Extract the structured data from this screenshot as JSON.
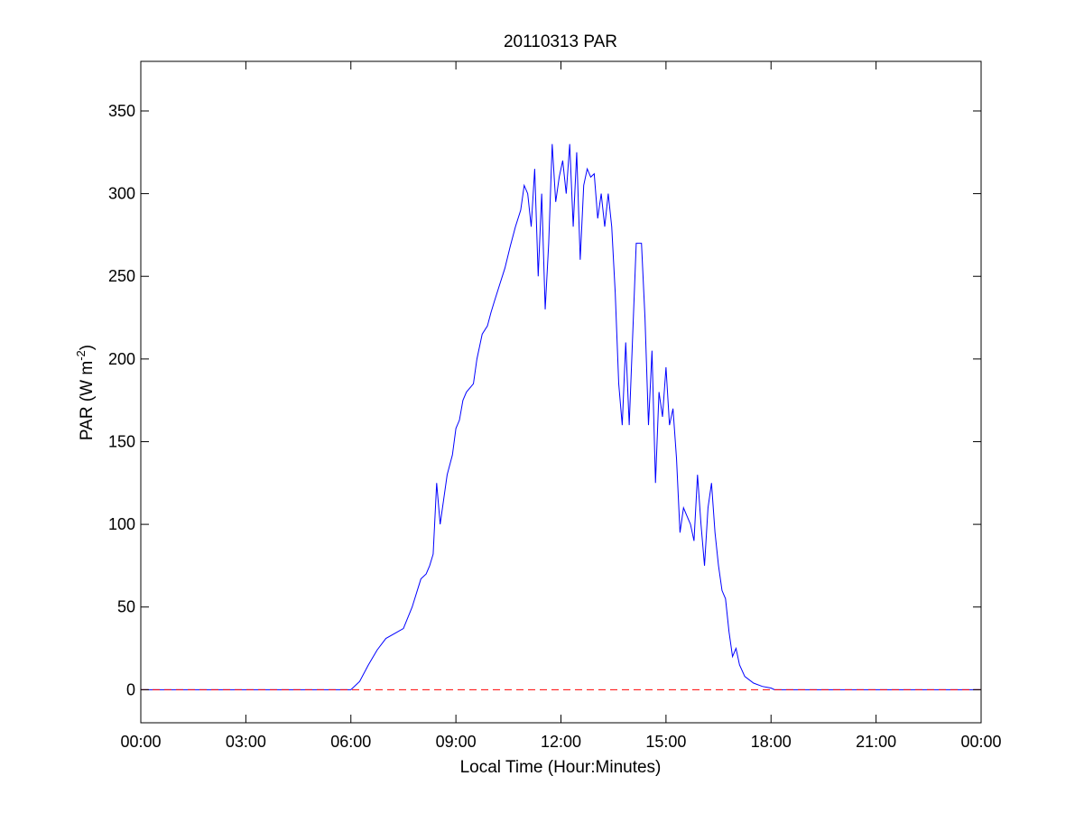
{
  "chart_data": {
    "type": "line",
    "title": "20110313 PAR",
    "xlabel": "Local Time (Hour:Minutes)",
    "ylabel": {
      "prefix": "PAR (W m",
      "superscript": "-2",
      "suffix": ")"
    },
    "xlim": [
      "00:00",
      "24:00"
    ],
    "xticks": [
      "00:00",
      "03:00",
      "06:00",
      "09:00",
      "12:00",
      "15:00",
      "18:00",
      "21:00",
      "00:00"
    ],
    "ylim": [
      -20,
      380
    ],
    "yticks": [
      "0",
      "50",
      "100",
      "150",
      "200",
      "250",
      "300",
      "350"
    ],
    "grid": false,
    "legend": "none",
    "series": [
      {
        "color": "#0000ff",
        "style": "solid",
        "x_unit": "hours",
        "x": [
          0,
          6.0,
          6.25,
          6.5,
          6.75,
          7.0,
          7.25,
          7.5,
          7.75,
          8.0,
          8.15,
          8.25,
          8.35,
          8.45,
          8.55,
          8.65,
          8.75,
          8.9,
          9.0,
          9.1,
          9.2,
          9.3,
          9.5,
          9.6,
          9.75,
          9.9,
          10.0,
          10.1,
          10.25,
          10.4,
          10.55,
          10.7,
          10.85,
          10.95,
          11.05,
          11.15,
          11.25,
          11.35,
          11.45,
          11.55,
          11.65,
          11.75,
          11.85,
          11.95,
          12.05,
          12.15,
          12.25,
          12.35,
          12.45,
          12.55,
          12.65,
          12.75,
          12.85,
          12.95,
          13.05,
          13.15,
          13.25,
          13.35,
          13.45,
          13.55,
          13.65,
          13.75,
          13.85,
          13.95,
          14.05,
          14.15,
          14.3,
          14.4,
          14.5,
          14.6,
          14.7,
          14.8,
          14.9,
          15.0,
          15.1,
          15.2,
          15.3,
          15.4,
          15.5,
          15.6,
          15.7,
          15.8,
          15.9,
          16.0,
          16.1,
          16.2,
          16.3,
          16.4,
          16.5,
          16.6,
          16.7,
          16.8,
          16.9,
          17.0,
          17.1,
          17.25,
          17.5,
          17.75,
          18.0,
          18.1,
          18.25,
          24.0
        ],
        "y": [
          0,
          0,
          5,
          15,
          24,
          31,
          34,
          37,
          50,
          67,
          70,
          75,
          82,
          125,
          100,
          115,
          130,
          142,
          158,
          163,
          175,
          180,
          185,
          200,
          215,
          220,
          228,
          235,
          245,
          255,
          268,
          280,
          290,
          305,
          300,
          280,
          315,
          250,
          300,
          230,
          270,
          330,
          295,
          310,
          320,
          300,
          330,
          280,
          325,
          260,
          305,
          315,
          310,
          312,
          285,
          300,
          280,
          300,
          280,
          240,
          185,
          160,
          210,
          160,
          215,
          270,
          270,
          225,
          160,
          205,
          125,
          180,
          165,
          195,
          160,
          170,
          140,
          95,
          110,
          105,
          100,
          90,
          130,
          100,
          75,
          110,
          125,
          95,
          75,
          60,
          55,
          35,
          20,
          25,
          15,
          8,
          4,
          2,
          1,
          0,
          0,
          0
        ]
      },
      {
        "color": "#ff0000",
        "style": "dashed",
        "x_unit": "hours",
        "x": [
          0,
          24
        ],
        "y": [
          0,
          0
        ]
      }
    ]
  }
}
